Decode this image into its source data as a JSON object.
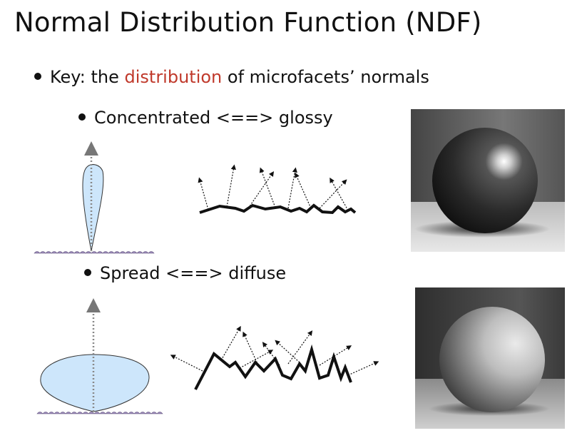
{
  "slide": {
    "title": "Normal Distribution Function (NDF)",
    "bullet1": {
      "prefix": "Key: the ",
      "highlight": "distribution",
      "suffix": " of microfacets’ normals"
    },
    "sub1": "Concentrated <==> glossy",
    "sub2": "Spread <==> diffuse"
  },
  "colors": {
    "highlight": "#c0392b",
    "lobe_fill": "#cde6fb",
    "surface": "#8a7aa8"
  },
  "figures": {
    "glossy_lobe": "narrow-lobe-diagram",
    "glossy_surface": "smooth-microfacet-surface",
    "glossy_sphere": "glossy-sphere-render",
    "diffuse_lobe": "wide-lobe-diagram",
    "diffuse_surface": "rough-microfacet-surface",
    "diffuse_sphere": "diffuse-sphere-render"
  }
}
